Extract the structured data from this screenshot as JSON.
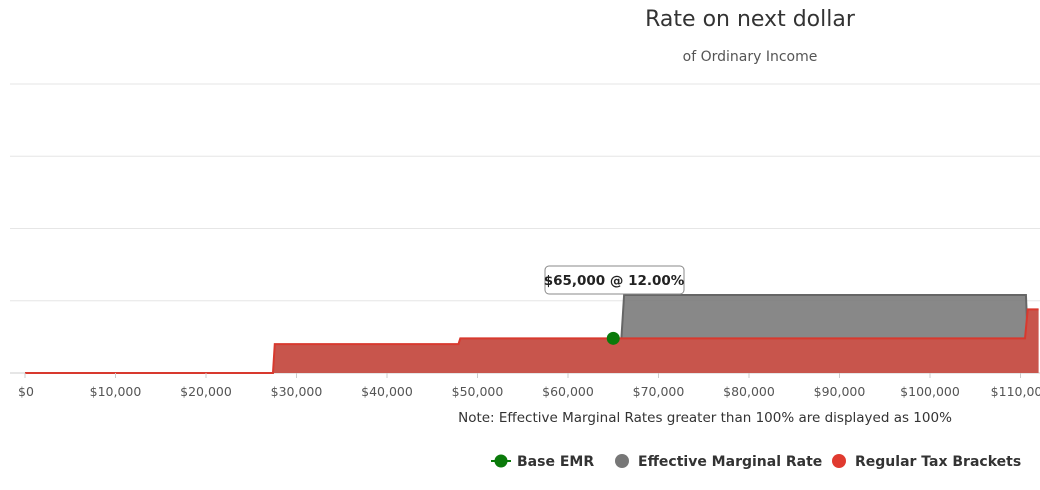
{
  "chart_data": {
    "type": "area",
    "title": "Rate on next dollar",
    "subtitle": "of Ordinary Income",
    "note": "Note: Effective Marginal Rates greater than 100% are displayed as 100%",
    "x_ticks": [
      "$0",
      "$10,000",
      "$20,000",
      "$30,000",
      "$40,000",
      "$50,000",
      "$60,000",
      "$70,000",
      "$80,000",
      "$90,000",
      "$100,000",
      "$110,000"
    ],
    "xlim": [
      0,
      112000
    ],
    "ylim": [
      0,
      100
    ],
    "grid": true,
    "legend_position": "bottom-right",
    "tooltip": "$65,000 @ 12.00%",
    "series": [
      {
        "name": "Regular Tax Brackets",
        "color": "#e03a2f",
        "points": [
          [
            0,
            0
          ],
          [
            27400,
            0
          ],
          [
            27600,
            10
          ],
          [
            47900,
            10
          ],
          [
            48100,
            12
          ],
          [
            110500,
            12
          ],
          [
            110800,
            22
          ],
          [
            112000,
            22
          ]
        ]
      },
      {
        "name": "Effective Marginal Rate",
        "color": "#777777",
        "points": [
          [
            65900,
            12
          ],
          [
            66200,
            27
          ],
          [
            110600,
            27
          ],
          [
            110800,
            12
          ]
        ]
      },
      {
        "name": "Base EMR",
        "color": "#0a7a0a",
        "points": [
          [
            65000,
            12
          ]
        ]
      }
    ]
  }
}
